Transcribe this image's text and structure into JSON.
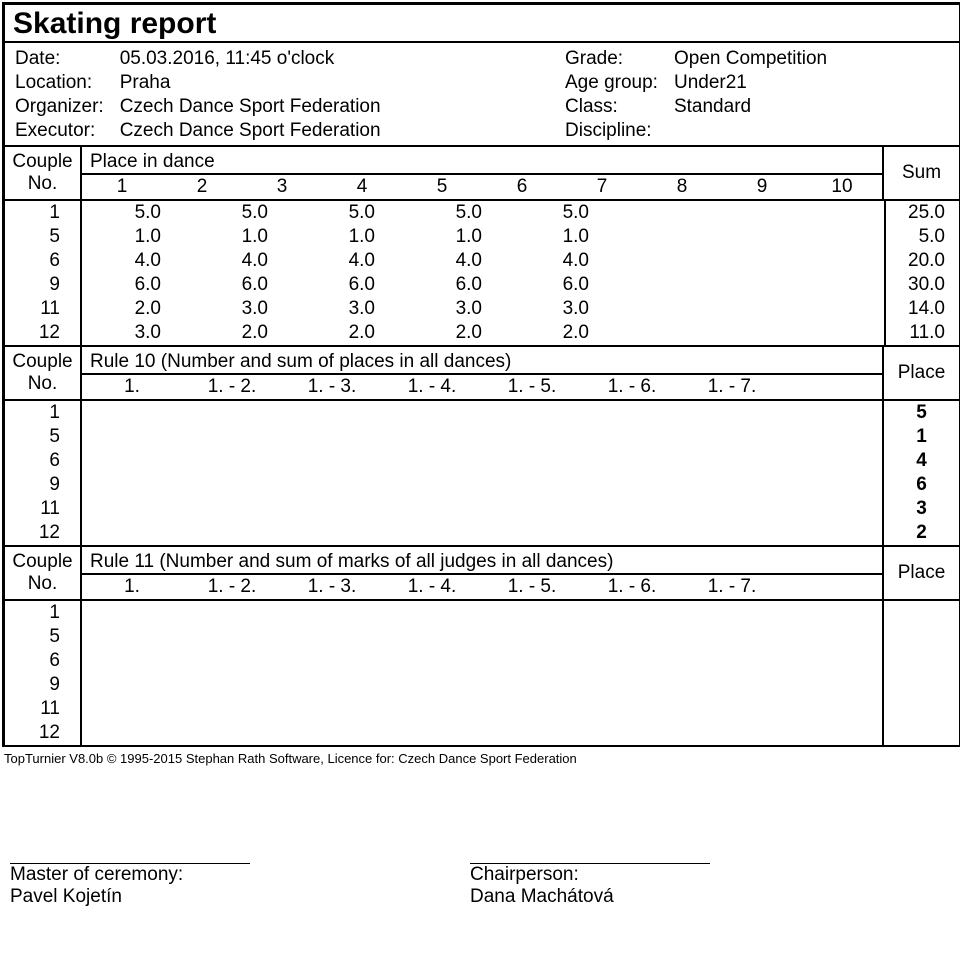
{
  "title": "Skating report",
  "meta_left": {
    "labels": [
      "Date:",
      "Location:",
      "Organizer:",
      "Executor:"
    ],
    "values": [
      "05.03.2016, 11:45 o'clock",
      "Praha",
      "Czech Dance Sport Federation",
      "Czech Dance Sport Federation"
    ]
  },
  "meta_right": {
    "labels": [
      "Grade:",
      "Age group:",
      "Class:",
      "Discipline:"
    ],
    "values": [
      "Open Competition",
      "Under21",
      "",
      "Standard"
    ]
  },
  "couple_hdr": "Couple\nNo.",
  "place_in_dance": "Place in dance",
  "sum_label": "Sum",
  "dance_cols": [
    "1",
    "2",
    "3",
    "4",
    "5",
    "6",
    "7",
    "8",
    "9",
    "10"
  ],
  "couples": [
    "1",
    "5",
    "6",
    "9",
    "11",
    "12"
  ],
  "scores": [
    [
      "5.0",
      "5.0",
      "5.0",
      "5.0",
      "5.0"
    ],
    [
      "1.0",
      "1.0",
      "1.0",
      "1.0",
      "1.0"
    ],
    [
      "4.0",
      "4.0",
      "4.0",
      "4.0",
      "4.0"
    ],
    [
      "6.0",
      "6.0",
      "6.0",
      "6.0",
      "6.0"
    ],
    [
      "2.0",
      "3.0",
      "3.0",
      "3.0",
      "3.0"
    ],
    [
      "3.0",
      "2.0",
      "2.0",
      "2.0",
      "2.0"
    ]
  ],
  "sums": [
    "25.0",
    "5.0",
    "20.0",
    "30.0",
    "14.0",
    "11.0"
  ],
  "rule10_title": "Rule 10 (Number and sum of places in all dances)",
  "place_label": "Place",
  "rule_cols": [
    "1.",
    "1. - 2.",
    "1. - 3.",
    "1. - 4.",
    "1. - 5.",
    "1. - 6.",
    "1. - 7."
  ],
  "places10": [
    "5",
    "1",
    "4",
    "6",
    "3",
    "2"
  ],
  "rule11_title": "Rule 11 (Number and sum of marks of all judges in all dances)",
  "footer": "TopTurnier V8.0b © 1995-2015 Stephan Rath Software, Licence for: Czech Dance Sport Federation",
  "sign_left_label": "Master of ceremony:",
  "sign_left_name": "Pavel Kojetín",
  "sign_right_label": "Chairperson:",
  "sign_right_name": "Dana Machátová"
}
